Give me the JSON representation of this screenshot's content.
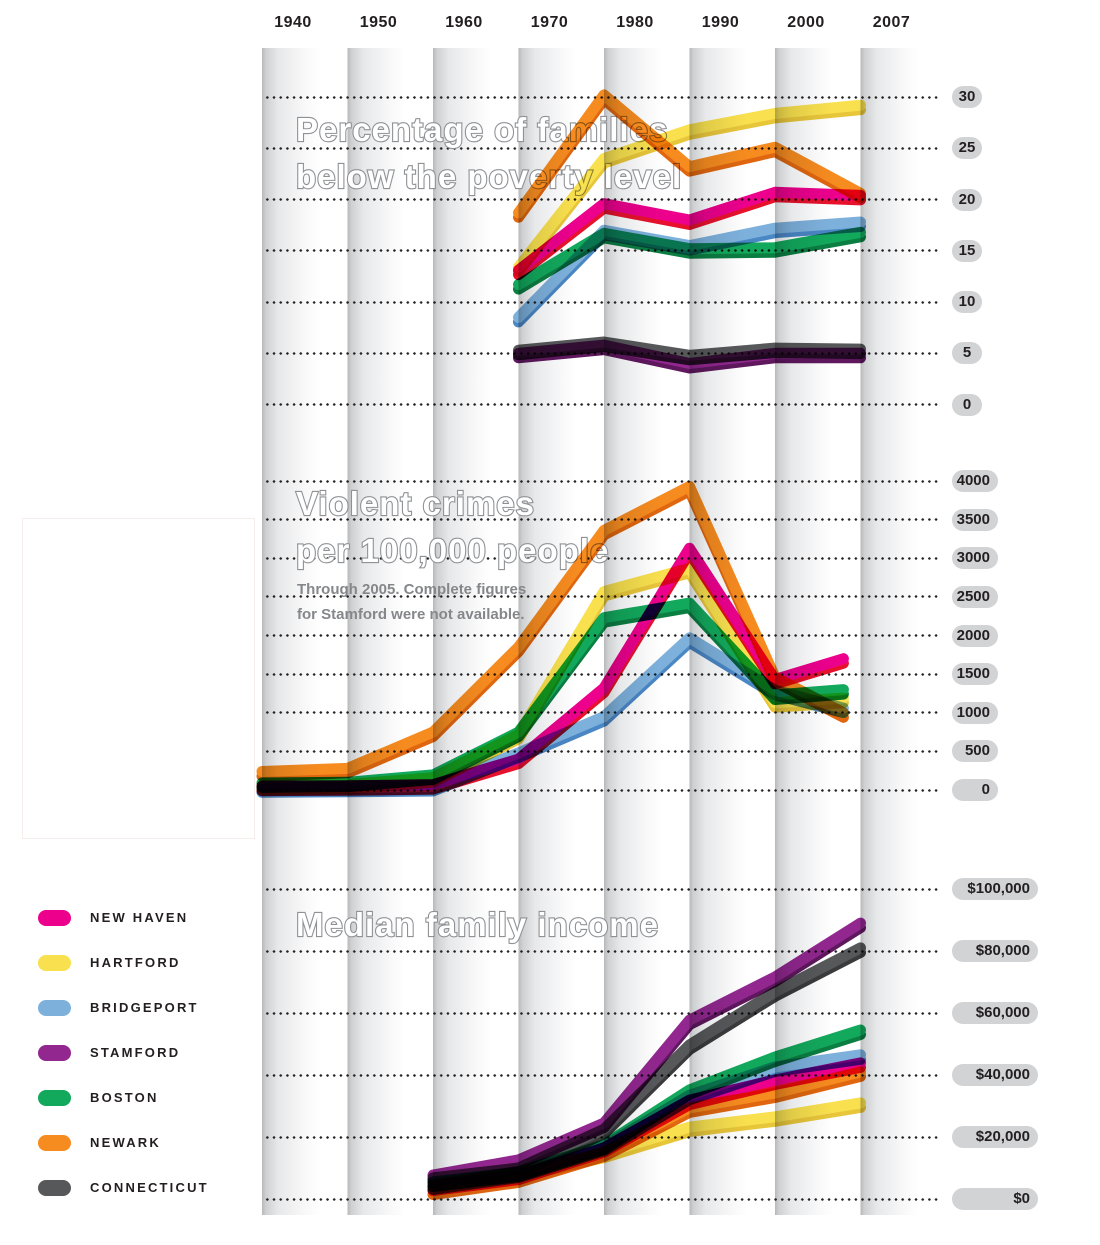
{
  "x_axis": {
    "labels": [
      "1940",
      "1950",
      "1960",
      "1970",
      "1980",
      "1990",
      "2000",
      "2007"
    ]
  },
  "palette": {
    "New Haven": {
      "color": "#ec008c",
      "shadow": "#e8112d"
    },
    "Hartford": {
      "color": "#f8e04e",
      "shadow": "#e8c63a"
    },
    "Bridgeport": {
      "color": "#7db1dc",
      "shadow": "#4a87c5"
    },
    "Stamford": {
      "color": "#92278f",
      "shadow": "#5f175e"
    },
    "Boston": {
      "color": "#12a95c",
      "shadow": "#0b7e42"
    },
    "Newark": {
      "color": "#f68b1f",
      "shadow": "#e0660f"
    },
    "Connecticut": {
      "color": "#57585a",
      "shadow": "#3b3b3d"
    }
  },
  "legend": {
    "items": [
      {
        "name": "New Haven",
        "label": "NEW HAVEN"
      },
      {
        "name": "Hartford",
        "label": "HARTFORD"
      },
      {
        "name": "Bridgeport",
        "label": "BRIDGEPORT"
      },
      {
        "name": "Stamford",
        "label": "STAMFORD"
      },
      {
        "name": "Boston",
        "label": "BOSTON"
      },
      {
        "name": "Newark",
        "label": "NEWARK"
      },
      {
        "name": "Connecticut",
        "label": "CONNECTICUT"
      }
    ]
  },
  "chart_data": [
    {
      "type": "line",
      "id": "poverty",
      "title_lines": [
        "Percentage of families",
        "below the poverty level"
      ],
      "ylim": [
        0,
        30
      ],
      "grid": "dotted",
      "y_ticks": [
        "30",
        "25",
        "20",
        "15",
        "10",
        "5",
        "0"
      ],
      "y_values": [
        30,
        25,
        20,
        15,
        10,
        5,
        0
      ],
      "x": [
        1970,
        1980,
        1990,
        2000,
        2007
      ],
      "series": [
        {
          "name": "Connecticut",
          "values": [
            5.3,
            6.1,
            4.8,
            5.5,
            5.4
          ]
        },
        {
          "name": "Stamford",
          "values": [
            5.0,
            5.8,
            4.0,
            5.0,
            5.0
          ]
        },
        {
          "name": "Boston",
          "values": [
            11.7,
            16.7,
            15.2,
            15.3,
            16.8
          ]
        },
        {
          "name": "Bridgeport",
          "values": [
            8.5,
            17.0,
            15.5,
            17.2,
            17.8
          ]
        },
        {
          "name": "New Haven",
          "values": [
            13.1,
            19.6,
            18.0,
            20.7,
            20.4
          ]
        },
        {
          "name": "Hartford",
          "values": [
            13.4,
            24.0,
            26.8,
            28.4,
            29.2
          ]
        },
        {
          "name": "Newark",
          "values": [
            18.7,
            30.2,
            23.2,
            25.1,
            20.6
          ]
        }
      ]
    },
    {
      "type": "line",
      "id": "crimes",
      "title_lines": [
        "Violent crimes",
        "per 100,000 people"
      ],
      "note_lines": [
        "Through 2005. Complete figures",
        "for Stamford were not available."
      ],
      "ylim": [
        0,
        4000
      ],
      "grid": "dotted",
      "y_ticks": [
        "4000",
        "3500",
        "3000",
        "2500",
        "2000",
        "1500",
        "1000",
        "500",
        "0"
      ],
      "y_values": [
        4000,
        3500,
        3000,
        2500,
        2000,
        1500,
        1000,
        500,
        0
      ],
      "x": [
        1940,
        1950,
        1960,
        1970,
        1980,
        1990,
        2000,
        2005
      ],
      "series": [
        {
          "name": "Bridgeport",
          "values": [
            30,
            35,
            45,
            480,
            950,
            1970,
            1290,
            1060
          ]
        },
        {
          "name": "Boston",
          "values": [
            90,
            100,
            195,
            750,
            2230,
            2420,
            1230,
            1300
          ]
        },
        {
          "name": "Hartford",
          "values": [
            60,
            70,
            160,
            720,
            2570,
            2870,
            1130,
            1190
          ]
        },
        {
          "name": "New Haven",
          "values": [
            50,
            55,
            70,
            400,
            1320,
            3130,
            1430,
            1700
          ]
        },
        {
          "name": "Newark",
          "values": [
            240,
            280,
            750,
            1850,
            3360,
            3930,
            1460,
            1000
          ]
        }
      ]
    },
    {
      "type": "line",
      "id": "income",
      "title_lines": [
        "Median family income"
      ],
      "ylim": [
        0,
        100000
      ],
      "grid": "dotted",
      "y_ticks": [
        "$100,000",
        "$80,000",
        "$60,000",
        "$40,000",
        "$20,000",
        "$0"
      ],
      "y_values": [
        100000,
        80000,
        60000,
        40000,
        20000,
        0
      ],
      "x": [
        1960,
        1970,
        1980,
        1990,
        2000,
        2007
      ],
      "series": [
        {
          "name": "Hartford",
          "values": [
            4800,
            8700,
            14800,
            23200,
            26500,
            31000
          ]
        },
        {
          "name": "Newark",
          "values": [
            2900,
            6800,
            15200,
            29400,
            34200,
            41000
          ]
        },
        {
          "name": "New Haven",
          "values": [
            4200,
            7700,
            16500,
            31900,
            38400,
            43900
          ]
        },
        {
          "name": "Bridgeport",
          "values": [
            4500,
            8400,
            17000,
            33500,
            42600,
            46500
          ]
        },
        {
          "name": "Boston",
          "values": [
            5500,
            8700,
            17500,
            35200,
            45800,
            54500
          ]
        },
        {
          "name": "Connecticut",
          "values": [
            6800,
            10000,
            22500,
            49700,
            66800,
            81000
          ]
        },
        {
          "name": "Stamford",
          "values": [
            7700,
            12600,
            24500,
            57700,
            71600,
            89000
          ]
        }
      ]
    }
  ]
}
